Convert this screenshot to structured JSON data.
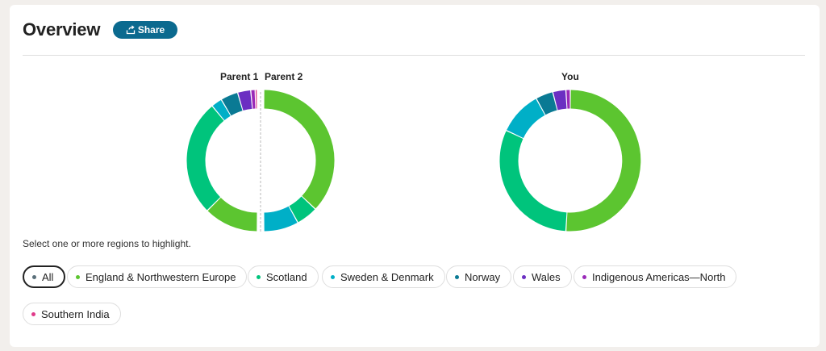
{
  "header": {
    "title": "Overview",
    "share_label": "Share"
  },
  "rings": {
    "parent1_label": "Parent 1",
    "parent2_label": "Parent 2",
    "you_label": "You"
  },
  "hint": "Select one or more regions to highlight.",
  "regions": [
    {
      "label": "All",
      "color": "#5a6f7a",
      "active": true
    },
    {
      "label": "England & Northwestern Europe",
      "color": "#5cc530"
    },
    {
      "label": "Scotland",
      "color": "#00c47c"
    },
    {
      "label": "Sweden & Denmark",
      "color": "#00afc7"
    },
    {
      "label": "Norway",
      "color": "#0a7a94"
    },
    {
      "label": "Wales",
      "color": "#6b2fc2"
    },
    {
      "label": "Indigenous Americas—North",
      "color": "#9a2ab8"
    },
    {
      "label": "Southern India",
      "color": "#e03a8a"
    }
  ],
  "chart_data": {
    "type": "donut",
    "series": [
      {
        "name": "Parent 1",
        "segments": [
          {
            "region": "England & Northwestern Europe",
            "color": "#5cc530",
            "value": 25
          },
          {
            "region": "Scotland",
            "color": "#00c47c",
            "value": 53
          },
          {
            "region": "Sweden & Denmark",
            "color": "#00afc7",
            "value": 5
          },
          {
            "region": "Norway",
            "color": "#0a7a94",
            "value": 8
          },
          {
            "region": "Wales",
            "color": "#6b2fc2",
            "value": 6
          },
          {
            "region": "Indigenous Americas—North",
            "color": "#9a2ab8",
            "value": 2
          },
          {
            "region": "Southern India",
            "color": "#e03a8a",
            "value": 1
          }
        ]
      },
      {
        "name": "Parent 2",
        "segments": [
          {
            "region": "England & Northwestern Europe",
            "color": "#5cc530",
            "value": 74
          },
          {
            "region": "Scotland",
            "color": "#00c47c",
            "value": 10
          },
          {
            "region": "Sweden & Denmark",
            "color": "#00afc7",
            "value": 16
          }
        ]
      },
      {
        "name": "You",
        "segments": [
          {
            "region": "England & Northwestern Europe",
            "color": "#5cc530",
            "value": 51
          },
          {
            "region": "Scotland",
            "color": "#00c47c",
            "value": 31
          },
          {
            "region": "Sweden & Denmark",
            "color": "#00afc7",
            "value": 10
          },
          {
            "region": "Norway",
            "color": "#0a7a94",
            "value": 4
          },
          {
            "region": "Wales",
            "color": "#6b2fc2",
            "value": 3
          },
          {
            "region": "Indigenous Americas—North",
            "color": "#9a2ab8",
            "value": 1
          }
        ]
      }
    ]
  }
}
